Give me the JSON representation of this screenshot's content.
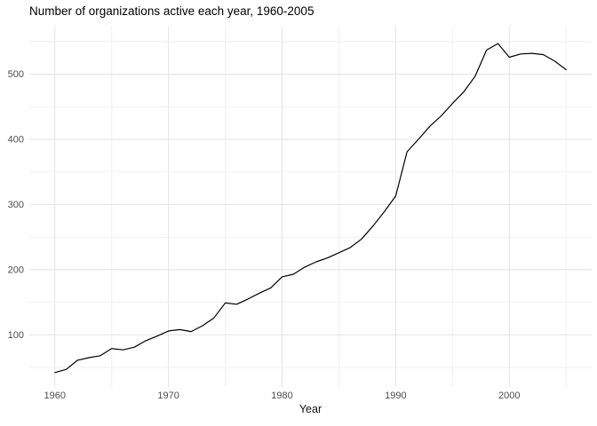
{
  "chart_data": {
    "type": "line",
    "title": "Number of organizations active each year, 1960-2005",
    "xlabel": "Year",
    "ylabel": "",
    "x": [
      1960,
      1961,
      1962,
      1963,
      1964,
      1965,
      1966,
      1967,
      1968,
      1969,
      1970,
      1971,
      1972,
      1973,
      1974,
      1975,
      1976,
      1977,
      1978,
      1979,
      1980,
      1981,
      1982,
      1983,
      1984,
      1985,
      1986,
      1987,
      1988,
      1989,
      1990,
      1991,
      1992,
      1993,
      1994,
      1995,
      1996,
      1997,
      1998,
      1999,
      2000,
      2001,
      2002,
      2003,
      2004,
      2005
    ],
    "series": [
      {
        "name": "organizations-active",
        "values": [
          42,
          47,
          61,
          65,
          68,
          79,
          77,
          81,
          91,
          98,
          106,
          108,
          105,
          114,
          126,
          149,
          147,
          155,
          164,
          172,
          189,
          193,
          204,
          212,
          218,
          226,
          234,
          247,
          267,
          289,
          313,
          381,
          400,
          420,
          436,
          455,
          473,
          497,
          537,
          547,
          526,
          531,
          532,
          530,
          520,
          507
        ]
      }
    ],
    "x_ticks_major": [
      1960,
      1970,
      1980,
      1990,
      2000
    ],
    "x_ticks_minor": [
      1965,
      1975,
      1985,
      1995,
      2005
    ],
    "y_ticks_major": [
      100,
      200,
      300,
      400,
      500
    ],
    "y_ticks_minor": [
      50,
      150,
      250,
      350,
      450,
      550
    ],
    "xlim": [
      1957.75,
      2007.25
    ],
    "ylim": [
      20,
      573
    ],
    "grid": "on",
    "legend": "none",
    "line_color": "#000000",
    "grid_major_color": "#E3E3E3",
    "grid_minor_color": "#EFEFEF",
    "tick_label_color": "#4D4D4D",
    "background_color": "#FFFFFF"
  }
}
